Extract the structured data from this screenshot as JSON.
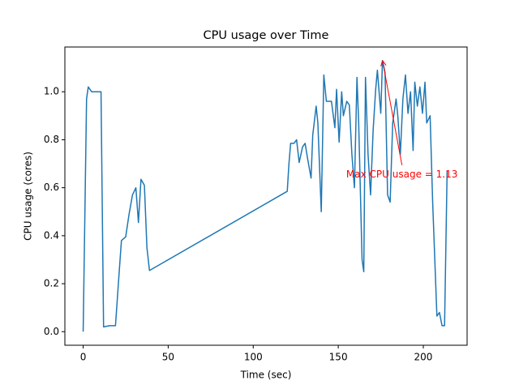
{
  "chart_data": {
    "type": "line",
    "title": "CPU usage over Time",
    "x_label": "Time (sec)",
    "y_label": "CPU usage (cores)",
    "x": [
      0,
      2,
      3,
      5,
      10.5,
      12,
      15.5,
      19,
      21,
      22.5,
      25,
      27,
      29,
      31,
      32.5,
      34,
      36,
      37.5,
      39,
      120,
      121,
      122,
      124,
      125.5,
      127,
      129,
      130.5,
      132,
      134,
      135,
      137,
      138,
      140,
      141.5,
      143,
      146,
      148,
      149,
      150.5,
      152,
      153,
      155,
      156.5,
      158,
      159.5,
      161,
      162,
      164,
      165,
      166,
      167.5,
      169,
      170.5,
      172,
      173,
      175,
      176,
      177.5,
      179,
      180.5,
      182,
      184,
      185,
      186.5,
      188,
      189.5,
      191,
      192.5,
      194,
      195,
      196.5,
      198,
      199.5,
      201,
      202,
      204,
      205.5,
      208,
      209.5,
      211,
      212.5,
      214
    ],
    "series": [
      {
        "name": "CPU usage",
        "color": "#1f77b4",
        "values": [
          0,
          0.97,
          1.02,
          1.0,
          1.0,
          0.02,
          0.025,
          0.025,
          0.23,
          0.38,
          0.395,
          0.49,
          0.57,
          0.6,
          0.455,
          0.635,
          0.61,
          0.35,
          0.255,
          0.585,
          0.7,
          0.785,
          0.785,
          0.8,
          0.705,
          0.77,
          0.785,
          0.72,
          0.64,
          0.82,
          0.94,
          0.87,
          0.5,
          1.07,
          0.96,
          0.96,
          0.85,
          1.01,
          0.79,
          1.0,
          0.9,
          0.96,
          0.945,
          0.74,
          0.6,
          1.06,
          0.87,
          0.3,
          0.25,
          1.06,
          0.74,
          0.57,
          0.84,
          1.01,
          1.09,
          0.91,
          1.13,
          1.08,
          0.57,
          0.54,
          0.87,
          0.97,
          0.9,
          0.74,
          0.97,
          1.07,
          0.91,
          1.0,
          0.755,
          1.04,
          0.94,
          1.02,
          0.91,
          1.04,
          0.87,
          0.9,
          0.54,
          0.065,
          0.08,
          0.025,
          0.025,
          0.67
        ]
      }
    ],
    "xlim": [
      -10.75,
      225.75
    ],
    "xticks": [
      0,
      50,
      100,
      150,
      200
    ],
    "ylim": [
      -0.0565,
      1.1865
    ],
    "yticks": [
      {
        "value": 0,
        "label": "0.0"
      },
      0.2,
      0.4,
      0.6,
      0.8,
      {
        "value": 1,
        "label": "1.0"
      }
    ],
    "annotation": {
      "text": "Max CPU usage = 1.13",
      "x": 176,
      "y": 1.13,
      "color": "#ff0000"
    }
  }
}
